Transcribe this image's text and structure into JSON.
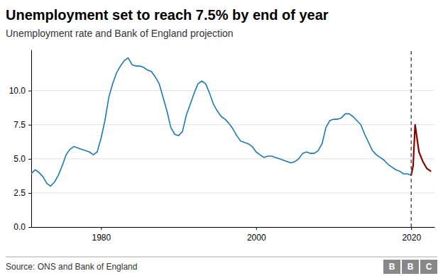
{
  "chart_data": {
    "type": "line",
    "title": "Unemployment set to reach 7.5% by end of year",
    "subtitle": "Unemployment rate and Bank of England projection",
    "source": "Source: ONS and Bank of England",
    "logo": "BBC",
    "xlim": [
      1971,
      2023
    ],
    "xticks": [
      1980,
      2000,
      2020
    ],
    "ylim": [
      0,
      13
    ],
    "yticks": [
      {
        "value": 0.0,
        "label": "0.0"
      },
      2.5,
      {
        "value": 5.0,
        "label": "5.0"
      },
      7.5,
      {
        "value": 10.0,
        "label": "10.0"
      }
    ],
    "grid": "y",
    "series": [
      {
        "color": "#1a7ab5",
        "x": [
          1971.0,
          1971.5,
          1972.0,
          1972.5,
          1973.0,
          1973.5,
          1974.0,
          1974.5,
          1975.0,
          1975.5,
          1976.0,
          1976.5,
          1977.0,
          1977.5,
          1978.0,
          1978.5,
          1979.0,
          1979.5,
          1980.0,
          1980.5,
          1981.0,
          1981.5,
          1982.0,
          1982.5,
          1983.0,
          1983.5,
          1984.0,
          1984.5,
          1985.0,
          1985.5,
          1986.0,
          1986.5,
          1987.0,
          1987.5,
          1988.0,
          1988.5,
          1989.0,
          1989.5,
          1990.0,
          1990.5,
          1991.0,
          1991.5,
          1992.0,
          1992.5,
          1993.0,
          1993.5,
          1994.0,
          1994.5,
          1995.0,
          1995.5,
          1996.0,
          1996.5,
          1997.0,
          1997.5,
          1998.0,
          1998.5,
          1999.0,
          1999.5,
          2000.0,
          2000.5,
          2001.0,
          2001.5,
          2002.0,
          2002.5,
          2003.0,
          2003.5,
          2004.0,
          2004.5,
          2005.0,
          2005.5,
          2006.0,
          2006.5,
          2007.0,
          2007.5,
          2008.0,
          2008.5,
          2009.0,
          2009.5,
          2010.0,
          2010.5,
          2011.0,
          2011.5,
          2012.0,
          2012.5,
          2013.0,
          2013.5,
          2014.0,
          2014.5,
          2015.0,
          2015.5,
          2016.0,
          2016.5,
          2017.0,
          2017.5,
          2018.0,
          2018.5,
          2019.0,
          2019.5,
          2020.0
        ],
        "values": [
          3.9,
          4.2,
          4.0,
          3.7,
          3.2,
          3.0,
          3.3,
          3.8,
          4.5,
          5.3,
          5.7,
          5.9,
          5.8,
          5.7,
          5.6,
          5.5,
          5.3,
          5.5,
          6.5,
          7.8,
          9.5,
          10.5,
          11.3,
          11.8,
          12.2,
          12.4,
          11.9,
          11.8,
          11.8,
          11.7,
          11.5,
          11.4,
          11.0,
          10.5,
          9.5,
          8.5,
          7.3,
          6.8,
          6.7,
          7.0,
          8.2,
          9.0,
          9.8,
          10.5,
          10.7,
          10.5,
          9.8,
          9.0,
          8.5,
          8.1,
          7.9,
          7.6,
          7.2,
          6.7,
          6.3,
          6.2,
          6.1,
          5.9,
          5.5,
          5.3,
          5.1,
          5.2,
          5.2,
          5.1,
          5.0,
          4.9,
          4.8,
          4.7,
          4.8,
          5.0,
          5.4,
          5.5,
          5.4,
          5.4,
          5.6,
          6.1,
          7.3,
          7.8,
          7.9,
          7.9,
          8.0,
          8.3,
          8.3,
          8.1,
          7.8,
          7.5,
          6.8,
          6.2,
          5.6,
          5.3,
          5.1,
          4.9,
          4.6,
          4.4,
          4.2,
          4.1,
          3.9,
          3.9,
          3.8
        ]
      },
      {
        "color": "#8b0000",
        "x": [
          2020.0,
          2020.25,
          2020.5,
          2020.75,
          2021.0,
          2021.5,
          2022.0,
          2022.5
        ],
        "values": [
          3.8,
          4.5,
          7.5,
          6.5,
          5.5,
          4.8,
          4.3,
          4.1
        ]
      }
    ],
    "annotations": [
      {
        "x": 2020,
        "line_style": "dashed"
      }
    ]
  }
}
